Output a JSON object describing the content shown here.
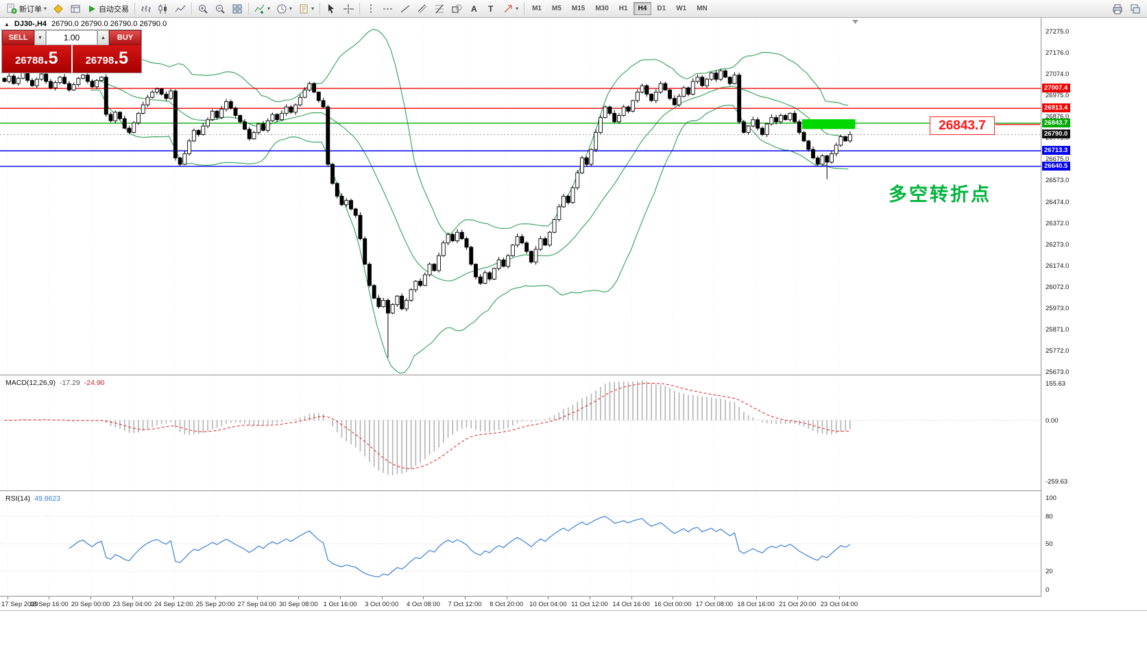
{
  "toolbar": {
    "new_order_label": "新订单",
    "autotrading_label": "自动交易",
    "timeframes": [
      "M1",
      "M5",
      "M15",
      "M30",
      "H1",
      "H4",
      "D1",
      "W1",
      "MN"
    ],
    "active_timeframe": "H4"
  },
  "chart": {
    "symbol": "DJ30-,H4",
    "ohlc": "26790.0 26790.0 26790.0 26790.0",
    "trade_panel": {
      "sell_label": "SELL",
      "buy_label": "BUY",
      "volume": "1.00",
      "sell_price_main": "26788",
      "sell_price_frac": ".5",
      "buy_price_main": "26798",
      "buy_price_frac": ".5"
    }
  },
  "macd_panel": {
    "name": "MACD(12,26,9)",
    "main_value": "-17.29",
    "signal_value": "-24.90"
  },
  "rsi_panel": {
    "name": "RSI(14)",
    "value": "49.8623"
  },
  "chart_data": {
    "type": "candlestick",
    "symbol": "DJ30-",
    "timeframe": "H4",
    "y_axis": [
      27275.0,
      27176.0,
      27074.0,
      26975.0,
      26876.0,
      26775.0,
      26675.0,
      26573.0,
      26474.0,
      26372.0,
      26273.0,
      26174.0,
      26072.0,
      25973.0,
      25871.0,
      25772.0,
      25673.0
    ],
    "closes": [
      27040,
      27065,
      27030,
      27055,
      27080,
      27045,
      27020,
      27050,
      27075,
      27040,
      27010,
      27035,
      27060,
      27030,
      27000,
      27025,
      27055,
      27070,
      27040,
      27015,
      27045,
      27060,
      26885,
      26855,
      26895,
      26865,
      26820,
      26800,
      26845,
      26890,
      26930,
      26965,
      26990,
      27005,
      26980,
      26960,
      26995,
      26680,
      26650,
      26700,
      26760,
      26810,
      26790,
      26830,
      26860,
      26900,
      26870,
      26910,
      26945,
      26915,
      26880,
      26850,
      26815,
      26770,
      26800,
      26840,
      26810,
      26855,
      26885,
      26860,
      26890,
      26920,
      26895,
      26930,
      26965,
      27000,
      27030,
      26990,
      26950,
      26920,
      26650,
      26560,
      26500,
      26460,
      26480,
      26440,
      26410,
      26300,
      26180,
      26080,
      26020,
      25980,
      26010,
      25950,
      25990,
      26030,
      25970,
      26010,
      26060,
      26100,
      26080,
      26130,
      26180,
      26150,
      26220,
      26280,
      26320,
      26290,
      26330,
      26300,
      26260,
      26180,
      26120,
      26090,
      26140,
      26110,
      26160,
      26200,
      26170,
      26220,
      26270,
      26310,
      26280,
      26240,
      26190,
      26250,
      26300,
      26270,
      26330,
      26390,
      26450,
      26500,
      26470,
      26540,
      26610,
      26680,
      26650,
      26720,
      26800,
      26870,
      26920,
      26890,
      26850,
      26880,
      26920,
      26900,
      26950,
      26990,
      27020,
      26980,
      26950,
      26990,
      27030,
      27000,
      26960,
      26930,
      26970,
      27010,
      26980,
      27040,
      27060,
      27020,
      27050,
      27080,
      27050,
      27090,
      27060,
      27030,
      27070,
      26850,
      26800,
      26830,
      26860,
      26820,
      26790,
      26840,
      26870,
      26850,
      26880,
      26860,
      26890,
      26850,
      26800,
      26760,
      26720,
      26680,
      26650,
      26690,
      26660,
      26700,
      26740,
      26780,
      26760,
      26790
    ],
    "low_spikes": {
      "83": 25740,
      "178": 26580
    },
    "indicators": {
      "bollinger": {
        "period": 20,
        "deviation": 2
      },
      "macd": {
        "fast": 12,
        "slow": 26,
        "signal": 9,
        "scale": [
          155.63,
          0.0,
          -259.63
        ]
      },
      "rsi": {
        "period": 14,
        "levels": [
          100,
          80,
          50,
          20,
          0
        ]
      }
    },
    "levels": [
      {
        "price": 27007.4,
        "color": "#ee0000"
      },
      {
        "price": 26913.4,
        "color": "#ee0000"
      },
      {
        "price": 26843.7,
        "color": "#00a800"
      },
      {
        "price": 26713.3,
        "color": "#0000ee"
      },
      {
        "price": 26640.5,
        "color": "#0000ee"
      }
    ],
    "current_price": 26790.0,
    "highlight_box": {
      "start_index": 173,
      "end_index": 184.5,
      "price_top": 26862,
      "price_bottom": 26816,
      "color": "#00d800"
    },
    "callout_text": "26843.7",
    "annotation_text": "多空转折点",
    "time_labels": [
      "17 Sep 2019",
      "18 Sep 16:00",
      "20 Sep 00:00",
      "23 Sep 04:00",
      "24 Sep 12:00",
      "25 Sep 20:00",
      "27 Sep 04:00",
      "30 Sep 08:00",
      "1 Oct 16:00",
      "3 Oct 00:00",
      "4 Oct 08:00",
      "7 Oct 12:00",
      "8 Oct 20:00",
      "10 Oct 04:00",
      "11 Oct 12:00",
      "14 Oct 16:00",
      "16 Oct 00:00",
      "17 Oct 08:00",
      "18 Oct 16:00",
      "21 Oct 20:00",
      "23 Oct 04:00"
    ]
  }
}
